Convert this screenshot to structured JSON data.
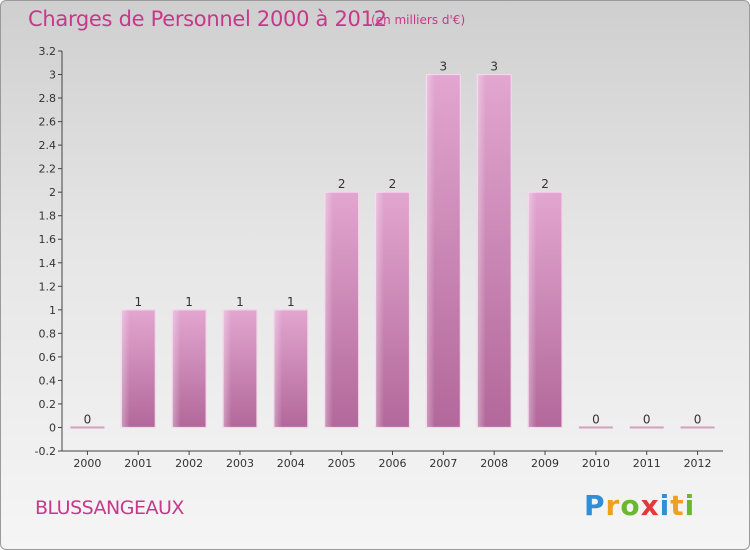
{
  "header": {
    "title": "Charges de Personnel 2000 à 2012",
    "unit": "(en milliers d'€)"
  },
  "footer": {
    "town": "BLUSSANGEAUX",
    "logo_letters": [
      "P",
      "r",
      "o",
      "x",
      "i",
      "t",
      "i"
    ],
    "logo_colors": [
      "#2e8fd8",
      "#f0a020",
      "#6ab82e",
      "#e23a3a",
      "#2e8fd8",
      "#f0a020",
      "#6ab82e"
    ]
  },
  "chart_data": {
    "type": "bar",
    "title": "Charges de Personnel 2000 à 2012",
    "subtitle": "(en milliers d'€)",
    "categories": [
      "2000",
      "2001",
      "2002",
      "2003",
      "2004",
      "2005",
      "2006",
      "2007",
      "2008",
      "2009",
      "2010",
      "2011",
      "2012"
    ],
    "values": [
      0,
      1,
      1,
      1,
      1,
      2,
      2,
      3,
      3,
      2,
      0,
      0,
      0
    ],
    "data_labels": [
      "0",
      "1",
      "1",
      "1",
      "1",
      "2",
      "2",
      "3",
      "3",
      "2",
      "0",
      "0",
      "0"
    ],
    "y_ticks": [
      "-0.2",
      "0",
      "0.2",
      "0.4",
      "0.6",
      "0.8",
      "1",
      "1.2",
      "1.4",
      "1.6",
      "1.8",
      "2",
      "2.2",
      "2.4",
      "2.6",
      "2.8",
      "3",
      "3.2"
    ],
    "ylim": [
      -0.2,
      3.2
    ],
    "grid": false,
    "bar_color": "#d890c0"
  }
}
